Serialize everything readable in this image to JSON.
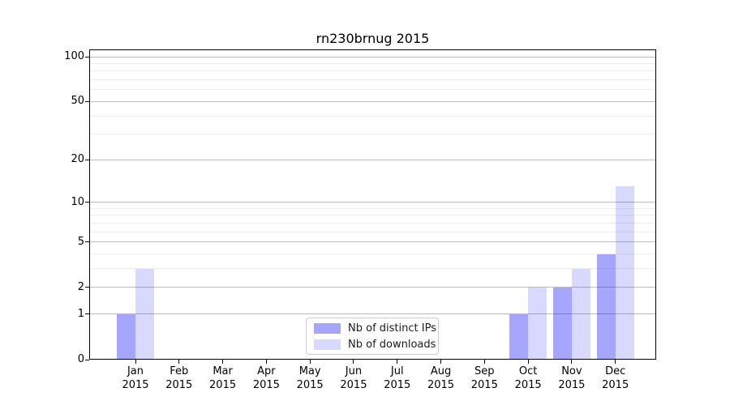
{
  "chart_data": {
    "type": "bar",
    "title": "rn230brnug 2015",
    "categories": [
      [
        "Jan",
        "2015"
      ],
      [
        "Feb",
        "2015"
      ],
      [
        "Mar",
        "2015"
      ],
      [
        "Apr",
        "2015"
      ],
      [
        "May",
        "2015"
      ],
      [
        "Jun",
        "2015"
      ],
      [
        "Jul",
        "2015"
      ],
      [
        "Aug",
        "2015"
      ],
      [
        "Sep",
        "2015"
      ],
      [
        "Oct",
        "2015"
      ],
      [
        "Nov",
        "2015"
      ],
      [
        "Dec",
        "2015"
      ]
    ],
    "series": [
      {
        "name": "Nb of distinct IPs",
        "color": "#0000ff",
        "alpha": 0.35,
        "values": [
          1,
          0,
          0,
          0,
          0,
          0,
          0,
          0,
          0,
          1,
          2,
          4
        ]
      },
      {
        "name": "Nb of downloads",
        "color": "#0000ff",
        "alpha": 0.15,
        "values": [
          3,
          0,
          0,
          0,
          0,
          0,
          0,
          0,
          0,
          2,
          3,
          13
        ]
      }
    ],
    "y_axis": {
      "scale": "log1p",
      "ticks": [
        0,
        1,
        2,
        5,
        10,
        20,
        50,
        100
      ],
      "minor_gridlines": [
        3,
        4,
        6,
        7,
        8,
        9,
        30,
        40,
        60,
        70,
        80,
        90
      ],
      "ylim": [
        0,
        112
      ]
    },
    "xlabel": "",
    "ylabel": "",
    "grid": {
      "major_color": "#bcbcbc",
      "minor_color": "#ededed"
    },
    "legend_position": "lower center",
    "background": "#ffffff"
  }
}
